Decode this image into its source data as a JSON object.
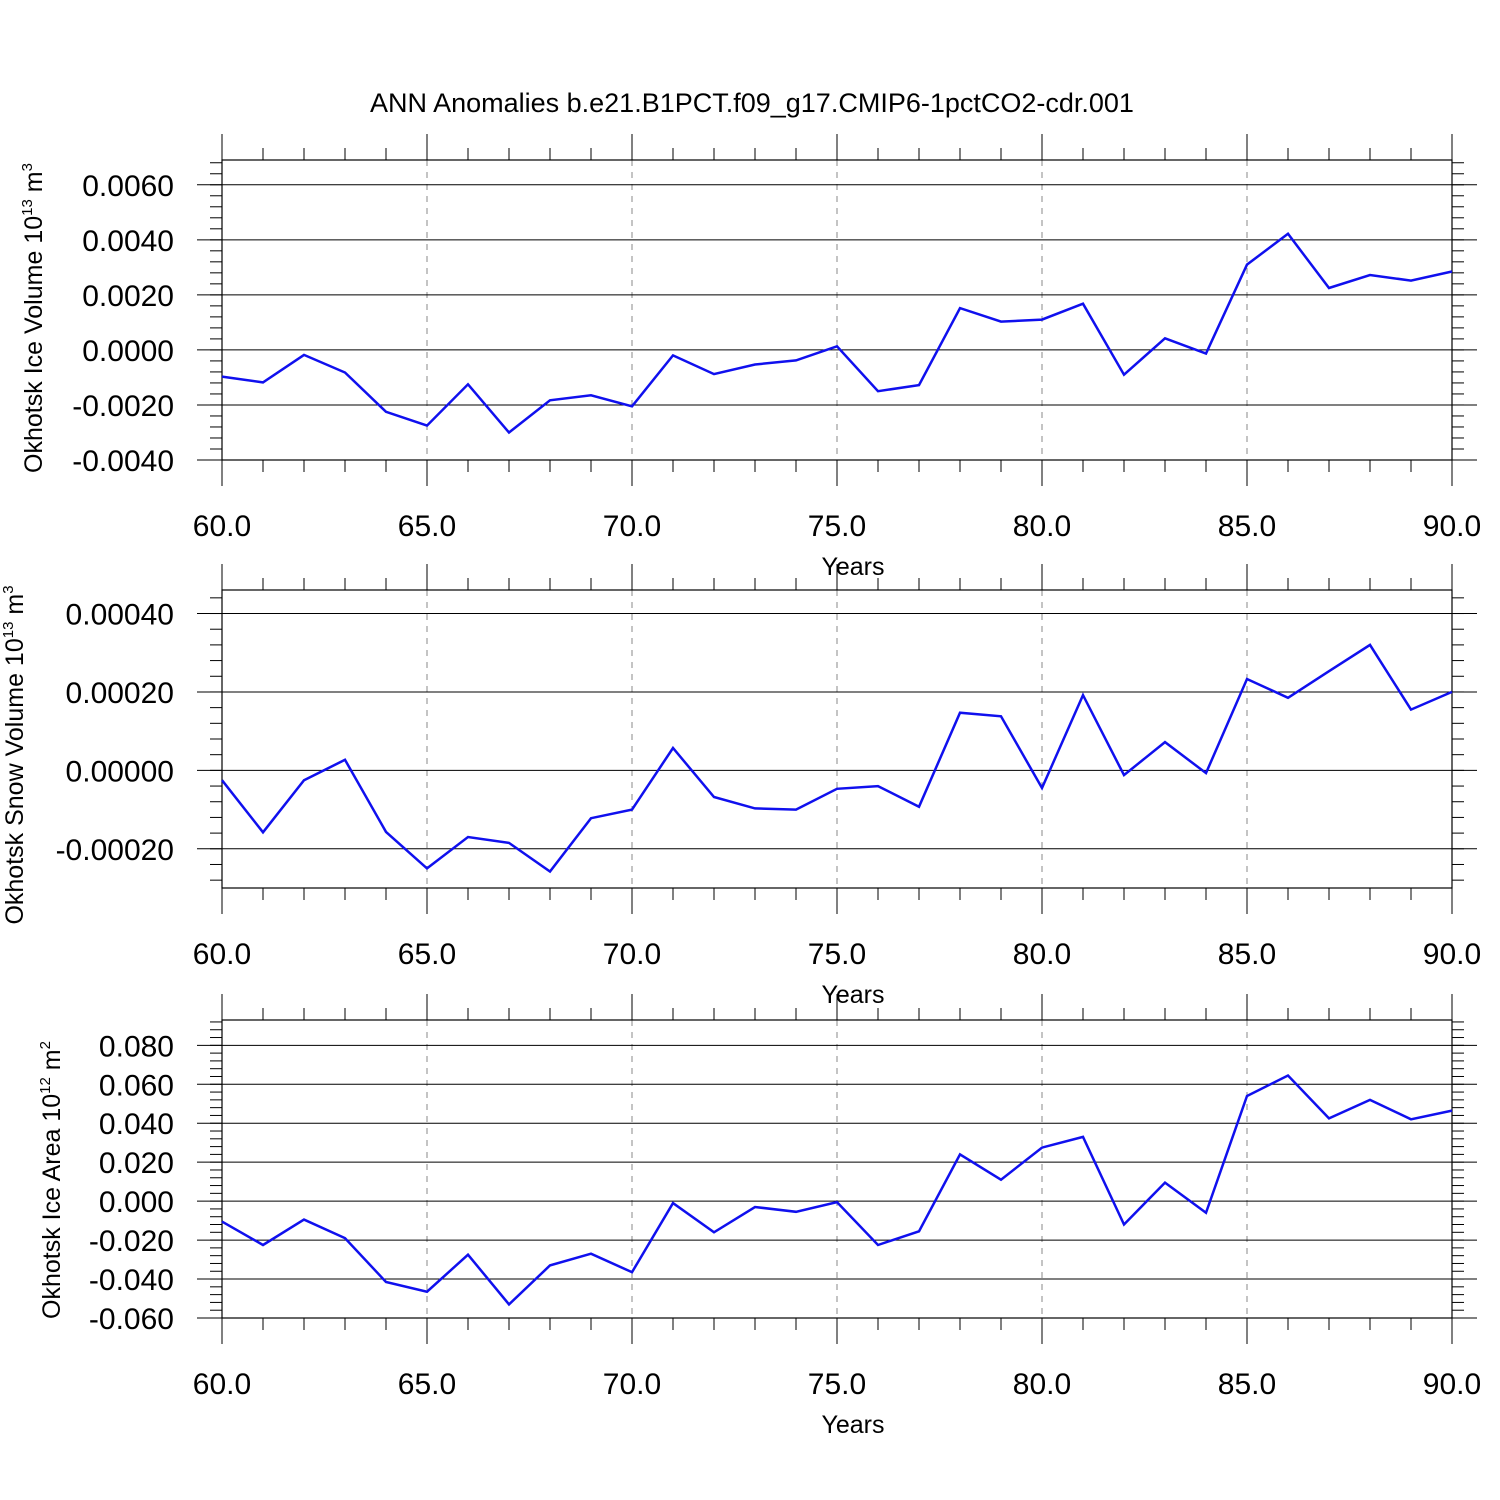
{
  "title": "ANN Anomalies b.e21.B1PCT.f09_g17.CMIP6-1pctCO2-cdr.001",
  "colors": {
    "line": "#1010ee",
    "grid": "#888888",
    "axis": "#000000"
  },
  "chart_data": [
    {
      "type": "line",
      "ylabel": "Okhotsk Ice Volume 10",
      "ylabel_exp": "13",
      "ylabel_unit": " m",
      "ylabel_unit_exp": "3",
      "xlabel": "Years",
      "xlim": [
        60,
        90
      ],
      "ylim": [
        -0.004,
        0.0069
      ],
      "x_ticks": [
        "60.0",
        "65.0",
        "70.0",
        "75.0",
        "80.0",
        "85.0",
        "90.0"
      ],
      "y_ticks": [
        {
          "value": 0.006,
          "label": "0.0060"
        },
        {
          "value": 0.004,
          "label": "0.0040"
        },
        {
          "value": 0.002,
          "label": "0.0020"
        },
        {
          "value": 0.0,
          "label": "0.0000"
        },
        {
          "value": -0.002,
          "label": "-0.0020"
        },
        {
          "value": -0.004,
          "label": "-0.0040"
        }
      ],
      "x": [
        60,
        61,
        62,
        63,
        64,
        65,
        66,
        67,
        68,
        69,
        70,
        71,
        72,
        73,
        74,
        75,
        76,
        77,
        78,
        79,
        80,
        81,
        82,
        83,
        84,
        85,
        86,
        87,
        88,
        89,
        90
      ],
      "values": [
        -0.00097,
        -0.00118,
        -0.00018,
        -0.00082,
        -0.00225,
        -0.00275,
        -0.00125,
        -0.003,
        -0.00183,
        -0.00165,
        -0.00205,
        -0.0002,
        -0.00088,
        -0.00053,
        -0.00038,
        0.00013,
        -0.0015,
        -0.00128,
        0.00152,
        0.00103,
        0.0011,
        0.00168,
        -0.0009,
        0.00042,
        -0.00013,
        0.0031,
        0.00422,
        0.00225,
        0.00272,
        0.00252,
        0.00285
      ]
    },
    {
      "type": "line",
      "ylabel": "Okhotsk Snow Volume 10",
      "ylabel_exp": "13",
      "ylabel_unit": " m",
      "ylabel_unit_exp": "3",
      "xlabel": "Years",
      "xlim": [
        60,
        90
      ],
      "ylim": [
        -0.0003,
        0.00046
      ],
      "x_ticks": [
        "60.0",
        "65.0",
        "70.0",
        "75.0",
        "80.0",
        "85.0",
        "90.0"
      ],
      "y_ticks": [
        {
          "value": 0.0004,
          "label": "0.00040"
        },
        {
          "value": 0.0002,
          "label": "0.00020"
        },
        {
          "value": 0.0,
          "label": "0.00000"
        },
        {
          "value": -0.0002,
          "label": "-0.00020"
        }
      ],
      "x": [
        60,
        61,
        62,
        63,
        64,
        65,
        66,
        67,
        68,
        69,
        70,
        71,
        72,
        73,
        74,
        75,
        76,
        77,
        78,
        79,
        80,
        81,
        82,
        83,
        84,
        85,
        86,
        87,
        88,
        89,
        90
      ],
      "values": [
        -2.5e-05,
        -0.000158,
        -2.5e-05,
        2.7e-05,
        -0.000157,
        -0.00025,
        -0.00017,
        -0.000185,
        -0.000258,
        -0.000122,
        -0.0001,
        5.7e-05,
        -6.8e-05,
        -9.7e-05,
        -0.0001,
        -4.7e-05,
        -4e-05,
        -9.3e-05,
        0.000147,
        0.000138,
        -4.5e-05,
        0.000192,
        -1.2e-05,
        7.2e-05,
        -7e-06,
        0.000233,
        0.000185,
        0.000253,
        0.00032,
        0.000155,
        0.0002
      ]
    },
    {
      "type": "line",
      "ylabel": "Okhotsk Ice Area 10",
      "ylabel_exp": "12",
      "ylabel_unit": " m",
      "ylabel_unit_exp": "2",
      "xlabel": "Years",
      "xlim": [
        60,
        90
      ],
      "ylim": [
        -0.06,
        0.093
      ],
      "x_ticks": [
        "60.0",
        "65.0",
        "70.0",
        "75.0",
        "80.0",
        "85.0",
        "90.0"
      ],
      "y_ticks": [
        {
          "value": 0.08,
          "label": "0.080"
        },
        {
          "value": 0.06,
          "label": "0.060"
        },
        {
          "value": 0.04,
          "label": "0.040"
        },
        {
          "value": 0.02,
          "label": "0.020"
        },
        {
          "value": 0.0,
          "label": "0.000"
        },
        {
          "value": -0.02,
          "label": "-0.020"
        },
        {
          "value": -0.04,
          "label": "-0.040"
        },
        {
          "value": -0.06,
          "label": "-0.060"
        }
      ],
      "x": [
        60,
        61,
        62,
        63,
        64,
        65,
        66,
        67,
        68,
        69,
        70,
        71,
        72,
        73,
        74,
        75,
        76,
        77,
        78,
        79,
        80,
        81,
        82,
        83,
        84,
        85,
        86,
        87,
        88,
        89,
        90
      ],
      "values": [
        -0.0105,
        -0.0225,
        -0.0095,
        -0.019,
        -0.0415,
        -0.0465,
        -0.0275,
        -0.053,
        -0.033,
        -0.027,
        -0.0365,
        -0.001,
        -0.016,
        -0.003,
        -0.0055,
        -0.0005,
        -0.0225,
        -0.0155,
        0.024,
        0.011,
        0.0275,
        0.033,
        -0.012,
        0.0095,
        -0.006,
        0.054,
        0.0645,
        0.0425,
        0.052,
        0.042,
        0.0465
      ]
    }
  ]
}
